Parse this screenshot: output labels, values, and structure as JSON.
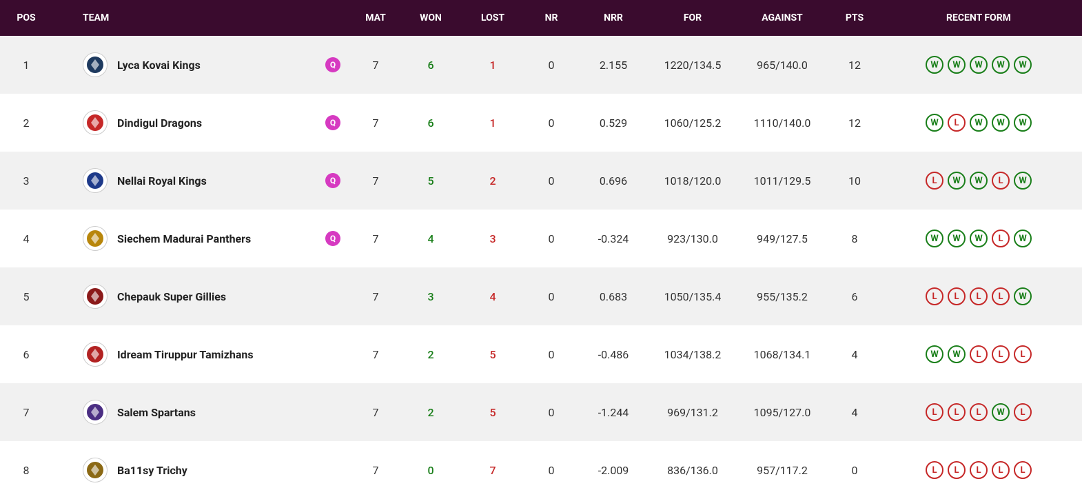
{
  "header": {
    "pos": "POS",
    "team": "TEAM",
    "mat": "MAT",
    "won": "WON",
    "lost": "LOST",
    "nr": "NR",
    "nrr": "NRR",
    "for": "FOR",
    "against": "AGAINST",
    "pts": "PTS",
    "form": "RECENT FORM"
  },
  "colors": {
    "header_bg": "#3a0b2e",
    "header_text": "#ffffff",
    "row_odd": "#f1f1f1",
    "row_even": "#ffffff",
    "won_color": "#1a7f1a",
    "lost_color": "#c62828",
    "q_badge": "#d63ac1",
    "text": "#333333"
  },
  "rows": [
    {
      "pos": "1",
      "team": "Lyca Kovai Kings",
      "logo_bg": "#1e3a5f",
      "qualified": true,
      "mat": "7",
      "won": "6",
      "lost": "1",
      "nr": "0",
      "nrr": "2.155",
      "for": "1220/134.5",
      "against": "965/140.0",
      "pts": "12",
      "form": [
        "W",
        "W",
        "W",
        "W",
        "W"
      ]
    },
    {
      "pos": "2",
      "team": "Dindigul Dragons",
      "logo_bg": "#c62828",
      "qualified": true,
      "mat": "7",
      "won": "6",
      "lost": "1",
      "nr": "0",
      "nrr": "0.529",
      "for": "1060/125.2",
      "against": "1110/140.0",
      "pts": "12",
      "form": [
        "W",
        "L",
        "W",
        "W",
        "W"
      ]
    },
    {
      "pos": "3",
      "team": "Nellai Royal Kings",
      "logo_bg": "#1e3a8a",
      "qualified": true,
      "mat": "7",
      "won": "5",
      "lost": "2",
      "nr": "0",
      "nrr": "0.696",
      "for": "1018/120.0",
      "against": "1011/129.5",
      "pts": "10",
      "form": [
        "L",
        "W",
        "W",
        "L",
        "W"
      ]
    },
    {
      "pos": "4",
      "team": "Siechem Madurai Panthers",
      "logo_bg": "#b8860b",
      "qualified": true,
      "mat": "7",
      "won": "4",
      "lost": "3",
      "nr": "0",
      "nrr": "-0.324",
      "for": "923/130.0",
      "against": "949/127.5",
      "pts": "8",
      "form": [
        "W",
        "W",
        "W",
        "L",
        "W"
      ]
    },
    {
      "pos": "5",
      "team": "Chepauk Super Gillies",
      "logo_bg": "#8b1a1a",
      "qualified": false,
      "mat": "7",
      "won": "3",
      "lost": "4",
      "nr": "0",
      "nrr": "0.683",
      "for": "1050/135.4",
      "against": "955/135.2",
      "pts": "6",
      "form": [
        "L",
        "L",
        "L",
        "L",
        "W"
      ]
    },
    {
      "pos": "6",
      "team": "Idream Tiruppur Tamizhans",
      "logo_bg": "#b22222",
      "qualified": false,
      "mat": "7",
      "won": "2",
      "lost": "5",
      "nr": "0",
      "nrr": "-0.486",
      "for": "1034/138.2",
      "against": "1068/134.1",
      "pts": "4",
      "form": [
        "W",
        "W",
        "L",
        "L",
        "L"
      ]
    },
    {
      "pos": "7",
      "team": "Salem Spartans",
      "logo_bg": "#4b2e83",
      "qualified": false,
      "mat": "7",
      "won": "2",
      "lost": "5",
      "nr": "0",
      "nrr": "-1.244",
      "for": "969/131.2",
      "against": "1095/127.0",
      "pts": "4",
      "form": [
        "L",
        "L",
        "L",
        "W",
        "L"
      ]
    },
    {
      "pos": "8",
      "team": "Ba11sy Trichy",
      "logo_bg": "#8b6914",
      "qualified": false,
      "mat": "7",
      "won": "0",
      "lost": "7",
      "nr": "0",
      "nrr": "-2.009",
      "for": "836/136.0",
      "against": "957/117.2",
      "pts": "0",
      "form": [
        "L",
        "L",
        "L",
        "L",
        "L"
      ]
    }
  ],
  "q_label": "Q"
}
